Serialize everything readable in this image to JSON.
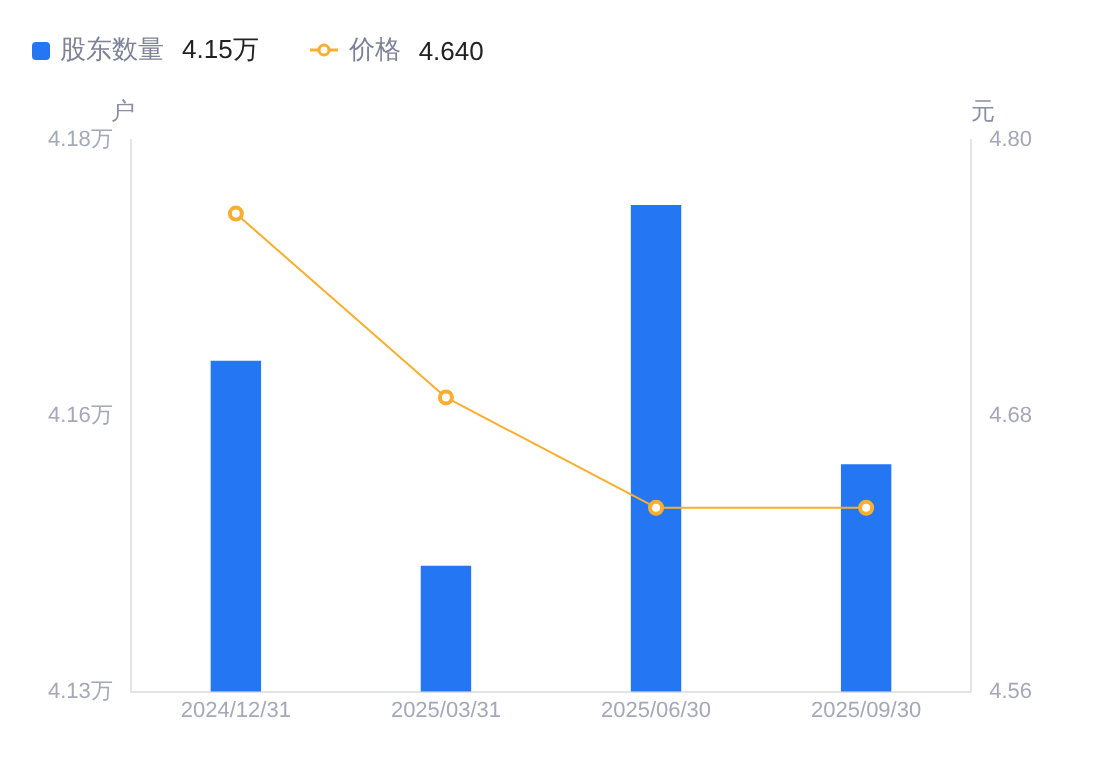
{
  "chart_data": {
    "type": "bar",
    "categories": [
      "2024/12/31",
      "2025/03/31",
      "2025/06/30",
      "2025/09/30"
    ],
    "ylabel": "户",
    "y2label": "元",
    "series": [
      {
        "name": "股东数量",
        "color": "#2476f2",
        "values": [
          4.16,
          4.1414,
          4.1741,
          4.1506
        ]
      },
      {
        "name": "价格",
        "type": "line",
        "axis": "y2",
        "color": "#f9ae2f",
        "values": [
          4.768,
          4.688,
          4.64,
          4.64
        ],
        "marker": "circle",
        "line_style": "solid"
      }
    ],
    "annotations": [
      "4.15万",
      "4.640"
    ],
    "ylim": [
      4.13,
      4.18
    ],
    "yticks": [
      {
        "value": 4.13,
        "label": "4.13万"
      },
      {
        "value": 4.155,
        "label": "4.16万"
      },
      {
        "value": 4.18,
        "label": "4.18万"
      }
    ],
    "y2lim": [
      4.56,
      4.8
    ],
    "y2ticks": [
      {
        "value": 4.56,
        "label": "4.56"
      },
      {
        "value": 4.68,
        "label": "4.68"
      },
      {
        "value": 4.8,
        "label": "4.80"
      }
    ],
    "grid": false,
    "legend": "top left"
  }
}
